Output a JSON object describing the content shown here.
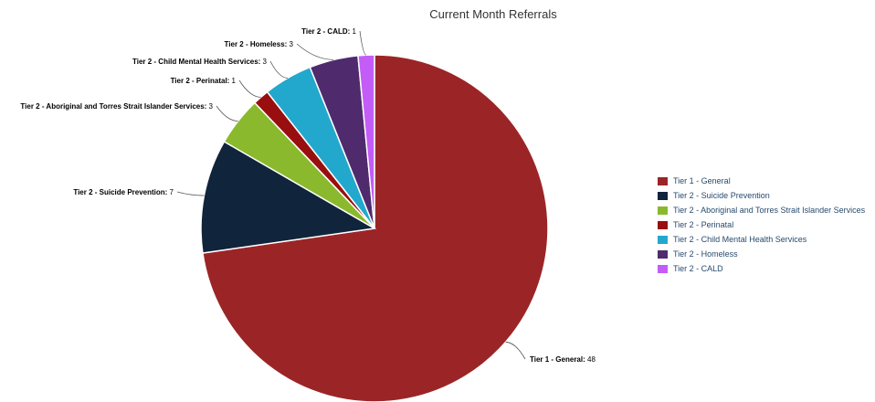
{
  "chart_data": {
    "type": "pie",
    "title": "Current Month Referrals",
    "categories": [
      "Tier 1 - General",
      "Tier 2 - Suicide Prevention",
      "Tier 2 - Aboriginal and Torres Strait Islander Services",
      "Tier 2 - Perinatal",
      "Tier 2 - Child Mental Health Services",
      "Tier 2 - Homeless",
      "Tier 2 - CALD"
    ],
    "values": [
      48,
      7,
      3,
      1,
      3,
      3,
      1
    ],
    "colors": [
      "#9b2526",
      "#10243b",
      "#8ab92d",
      "#990f0f",
      "#22a8cc",
      "#4f2a6d",
      "#c45cf7"
    ],
    "legend": "right",
    "data_labels": true
  }
}
